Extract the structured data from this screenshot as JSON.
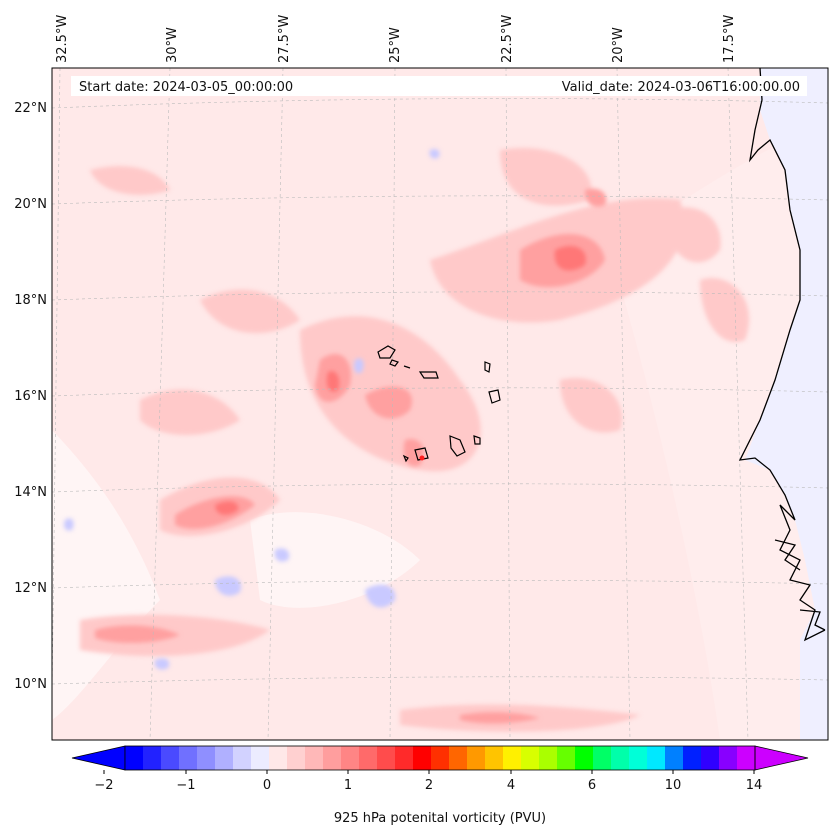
{
  "header": {
    "start_date": "Start date: 2024-03-05_00:00:00",
    "valid_date": "Valid_date: 2024-03-06T16:00:00.00"
  },
  "map": {
    "top_longitude_labels": [
      "32.5°W",
      "30°W",
      "27.5°W",
      "25°W",
      "22.5°W",
      "20°W",
      "17.5°W"
    ],
    "left_latitude_labels": [
      "22°N",
      "20°N",
      "18°N",
      "16°N",
      "14°N",
      "12°N",
      "10°N"
    ]
  },
  "colorbar": {
    "label": "925 hPa potenital vorticity (PVU)",
    "tick_labels": [
      "−2",
      "−1",
      "0",
      "1",
      "2",
      "4",
      "6",
      "10",
      "14"
    ],
    "colors": [
      "#0000ff",
      "#2222ff",
      "#4a4aff",
      "#7070ff",
      "#8f8fff",
      "#b0b0ff",
      "#d2d2ff",
      "#ececff",
      "#ffe8e8",
      "#ffd0d0",
      "#ffb8b8",
      "#ff9e9e",
      "#ff8585",
      "#ff6a6a",
      "#ff4c4c",
      "#ff2a2a",
      "#ff0000",
      "#ff3000",
      "#ff6600",
      "#ff9900",
      "#ffc400",
      "#fff000",
      "#d8ff00",
      "#aaff00",
      "#66ff00",
      "#00ff00",
      "#00ff66",
      "#00ffaa",
      "#00ffd8",
      "#00e8ff",
      "#0080ff",
      "#0020ff",
      "#3000ff",
      "#8800ff",
      "#cc00ff"
    ]
  }
}
